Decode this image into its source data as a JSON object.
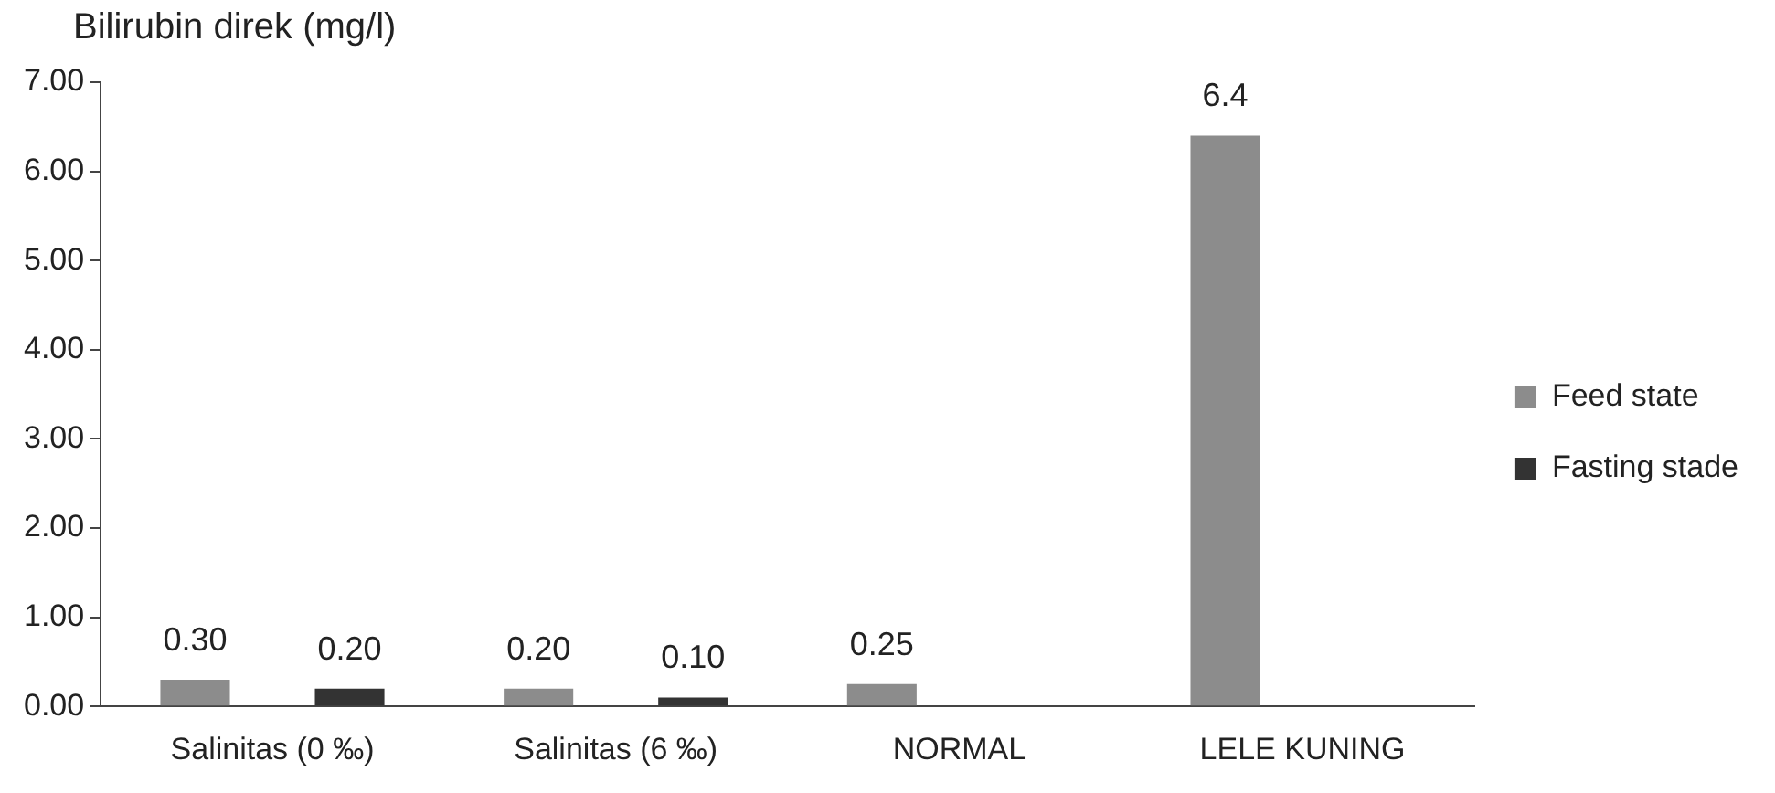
{
  "chart_data": {
    "type": "bar",
    "ylabel": "Bilirubin direk (mg/l)",
    "categories": [
      "Salinitas (0 ‰)",
      "Salinitas (6 ‰)",
      "NORMAL",
      "LELE KUNING"
    ],
    "series": [
      {
        "name": "Feed state",
        "color": "#8c8c8c",
        "values": [
          0.3,
          0.2,
          0.25,
          6.4
        ],
        "value_labels": [
          "0.30",
          "0.20",
          "0.25",
          "6.4"
        ]
      },
      {
        "name": "Fasting stade",
        "color": "#333333",
        "values": [
          0.2,
          0.1,
          null,
          null
        ],
        "value_labels": [
          "0.20",
          "0.10",
          null,
          null
        ]
      }
    ],
    "ylim": [
      0,
      7
    ],
    "yticks": [
      {
        "value": 0,
        "label": "0.00"
      },
      {
        "value": 1,
        "label": "1.00"
      },
      {
        "value": 2,
        "label": "2.00"
      },
      {
        "value": 3,
        "label": "3.00"
      },
      {
        "value": 4,
        "label": "4.00"
      },
      {
        "value": 5,
        "label": "5.00"
      },
      {
        "value": 6,
        "label": "6.00"
      },
      {
        "value": 7,
        "label": "7.00"
      }
    ],
    "grid": false,
    "legend": "right"
  }
}
